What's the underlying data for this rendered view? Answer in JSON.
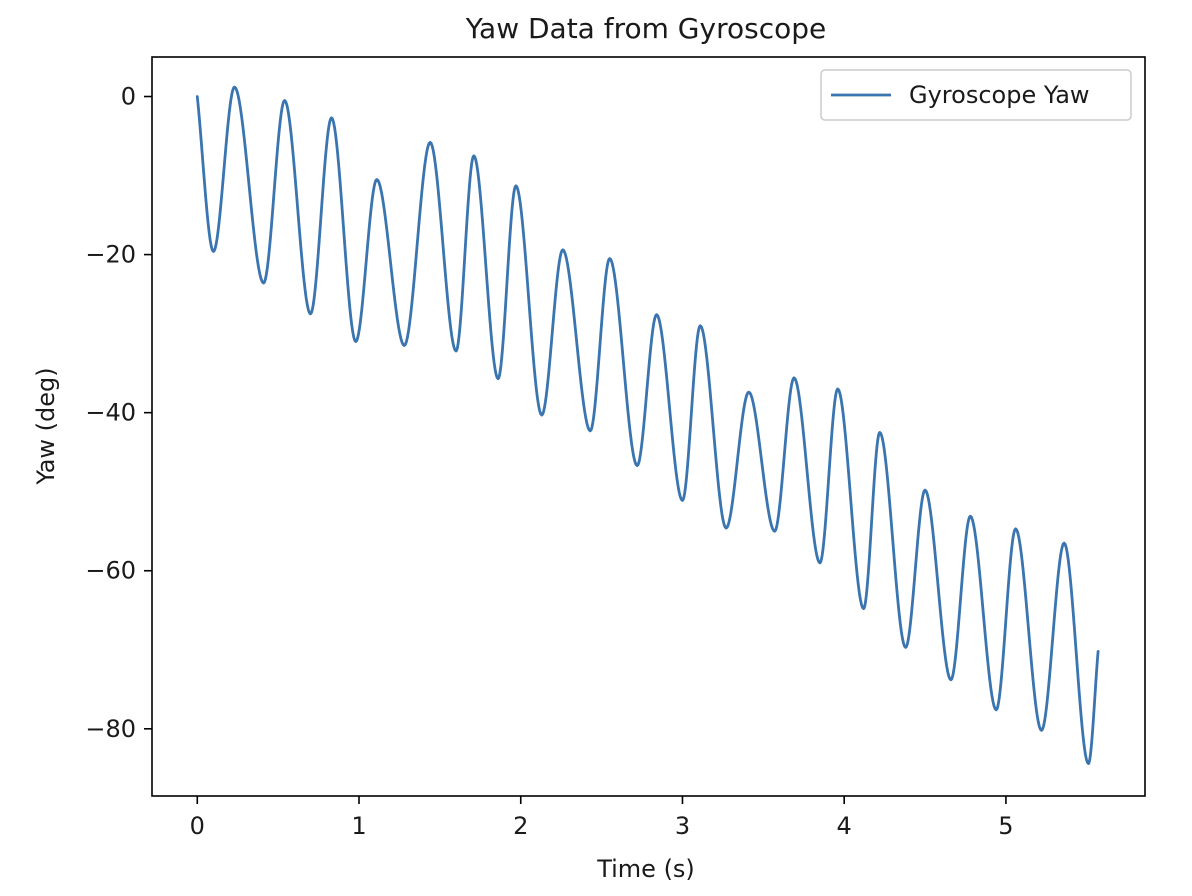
{
  "chart_data": {
    "type": "line",
    "title": "Yaw Data from Gyroscope",
    "xlabel": "Time (s)",
    "ylabel": "Yaw (deg)",
    "xlim": [
      -0.28,
      5.86
    ],
    "ylim": [
      -88.5,
      5.0
    ],
    "xticks": [
      0,
      1,
      2,
      3,
      4,
      5
    ],
    "xtick_labels": [
      "0",
      "1",
      "2",
      "3",
      "4",
      "5"
    ],
    "yticks": [
      0,
      -20,
      -40,
      -60,
      -80
    ],
    "ytick_labels": [
      "0",
      "−20",
      "−40",
      "−60",
      "−80"
    ],
    "grid": false,
    "legend_position": "top-right",
    "colors": {
      "line": "#3a75b0",
      "axes": "#000000",
      "text": "#1a1a1a"
    },
    "series": [
      {
        "name": "Gyroscope Yaw",
        "points": [
          [
            0.0,
            0.0
          ],
          [
            0.1,
            -19.6
          ],
          [
            0.23,
            1.2
          ],
          [
            0.41,
            -23.6
          ],
          [
            0.54,
            -0.5
          ],
          [
            0.7,
            -27.5
          ],
          [
            0.83,
            -2.7
          ],
          [
            0.98,
            -31.0
          ],
          [
            1.11,
            -10.5
          ],
          [
            1.28,
            -31.5
          ],
          [
            1.44,
            -5.8
          ],
          [
            1.6,
            -32.2
          ],
          [
            1.71,
            -7.5
          ],
          [
            1.86,
            -35.7
          ],
          [
            1.97,
            -11.3
          ],
          [
            2.13,
            -40.3
          ],
          [
            2.26,
            -19.4
          ],
          [
            2.43,
            -42.3
          ],
          [
            2.55,
            -20.5
          ],
          [
            2.72,
            -46.7
          ],
          [
            2.84,
            -27.6
          ],
          [
            3.0,
            -51.1
          ],
          [
            3.11,
            -29.0
          ],
          [
            3.27,
            -54.6
          ],
          [
            3.41,
            -37.4
          ],
          [
            3.57,
            -55.0
          ],
          [
            3.69,
            -35.6
          ],
          [
            3.85,
            -59.0
          ],
          [
            3.96,
            -37.0
          ],
          [
            4.12,
            -64.8
          ],
          [
            4.22,
            -42.5
          ],
          [
            4.38,
            -69.7
          ],
          [
            4.5,
            -49.8
          ],
          [
            4.66,
            -73.8
          ],
          [
            4.78,
            -53.1
          ],
          [
            4.94,
            -77.6
          ],
          [
            5.06,
            -54.7
          ],
          [
            5.22,
            -80.2
          ],
          [
            5.36,
            -56.5
          ],
          [
            5.51,
            -84.4
          ],
          [
            5.57,
            -70.2
          ]
        ]
      }
    ]
  }
}
